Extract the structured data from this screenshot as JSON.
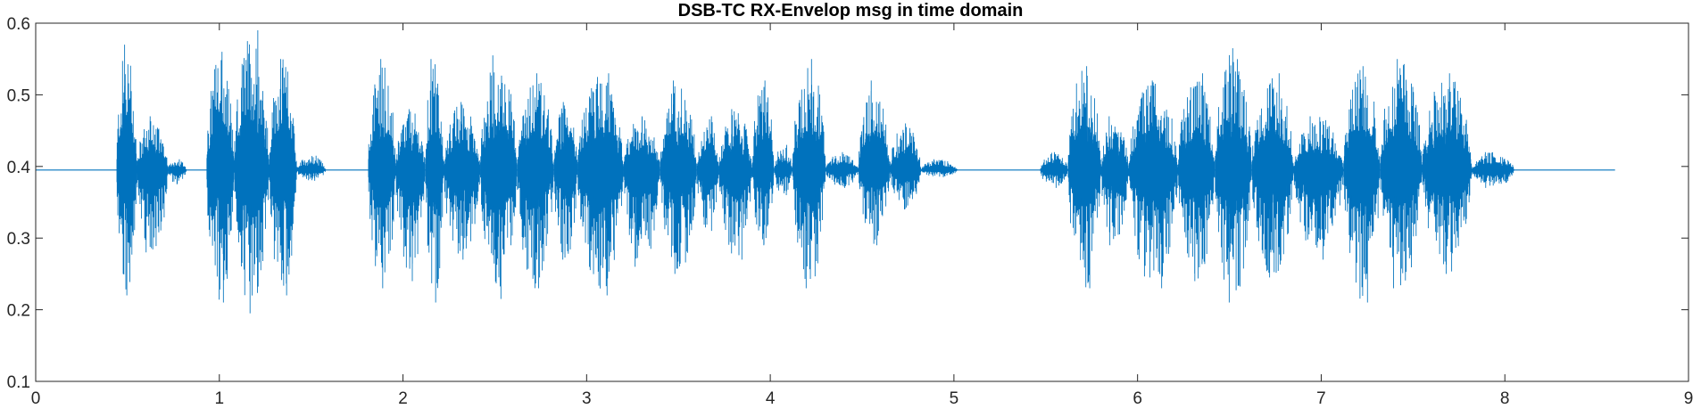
{
  "chart_data": {
    "type": "line",
    "title": "DSB-TC RX-Envelop msg in time domain",
    "xlabel": "",
    "ylabel": "",
    "xlim": [
      0,
      9
    ],
    "ylim": [
      0.1,
      0.6
    ],
    "x_ticks": [
      "0",
      "1",
      "2",
      "3",
      "4",
      "5",
      "6",
      "7",
      "8",
      "9"
    ],
    "y_ticks": [
      "0.1",
      "0.2",
      "0.3",
      "0.4",
      "0.5",
      "0.6"
    ],
    "grid": false,
    "legend": "none",
    "series_color": "#0072BD",
    "baseline": 0.395,
    "signal_end": 8.6,
    "bursts": [
      {
        "start": 0.44,
        "end": 0.55,
        "max": 0.57,
        "min": 0.22
      },
      {
        "start": 0.55,
        "end": 0.72,
        "max": 0.47,
        "min": 0.28
      },
      {
        "start": 0.72,
        "end": 0.82,
        "max": 0.41,
        "min": 0.375
      },
      {
        "start": 0.93,
        "end": 1.08,
        "max": 0.56,
        "min": 0.21
      },
      {
        "start": 1.08,
        "end": 1.27,
        "max": 0.59,
        "min": 0.195
      },
      {
        "start": 1.27,
        "end": 1.42,
        "max": 0.55,
        "min": 0.22
      },
      {
        "start": 1.42,
        "end": 1.58,
        "max": 0.415,
        "min": 0.38
      },
      {
        "start": 1.81,
        "end": 1.96,
        "max": 0.55,
        "min": 0.23
      },
      {
        "start": 1.96,
        "end": 2.12,
        "max": 0.48,
        "min": 0.24
      },
      {
        "start": 2.12,
        "end": 2.22,
        "max": 0.55,
        "min": 0.21
      },
      {
        "start": 2.22,
        "end": 2.42,
        "max": 0.49,
        "min": 0.27
      },
      {
        "start": 2.42,
        "end": 2.62,
        "max": 0.555,
        "min": 0.215
      },
      {
        "start": 2.62,
        "end": 2.82,
        "max": 0.53,
        "min": 0.23
      },
      {
        "start": 2.82,
        "end": 2.95,
        "max": 0.49,
        "min": 0.27
      },
      {
        "start": 2.95,
        "end": 3.2,
        "max": 0.53,
        "min": 0.22
      },
      {
        "start": 3.2,
        "end": 3.4,
        "max": 0.47,
        "min": 0.26
      },
      {
        "start": 3.4,
        "end": 3.6,
        "max": 0.52,
        "min": 0.25
      },
      {
        "start": 3.6,
        "end": 3.72,
        "max": 0.47,
        "min": 0.31
      },
      {
        "start": 3.72,
        "end": 3.9,
        "max": 0.48,
        "min": 0.27
      },
      {
        "start": 3.9,
        "end": 4.02,
        "max": 0.52,
        "min": 0.29
      },
      {
        "start": 4.02,
        "end": 4.12,
        "max": 0.43,
        "min": 0.36
      },
      {
        "start": 4.12,
        "end": 4.3,
        "max": 0.55,
        "min": 0.23
      },
      {
        "start": 4.3,
        "end": 4.48,
        "max": 0.42,
        "min": 0.37
      },
      {
        "start": 4.48,
        "end": 4.65,
        "max": 0.52,
        "min": 0.29
      },
      {
        "start": 4.65,
        "end": 4.82,
        "max": 0.46,
        "min": 0.34
      },
      {
        "start": 4.82,
        "end": 5.02,
        "max": 0.41,
        "min": 0.385
      },
      {
        "start": 5.47,
        "end": 5.62,
        "max": 0.42,
        "min": 0.37
      },
      {
        "start": 5.62,
        "end": 5.8,
        "max": 0.54,
        "min": 0.23
      },
      {
        "start": 5.8,
        "end": 5.95,
        "max": 0.47,
        "min": 0.29
      },
      {
        "start": 5.95,
        "end": 6.22,
        "max": 0.52,
        "min": 0.23
      },
      {
        "start": 6.22,
        "end": 6.42,
        "max": 0.53,
        "min": 0.24
      },
      {
        "start": 6.42,
        "end": 6.62,
        "max": 0.565,
        "min": 0.21
      },
      {
        "start": 6.62,
        "end": 6.85,
        "max": 0.53,
        "min": 0.245
      },
      {
        "start": 6.85,
        "end": 7.12,
        "max": 0.47,
        "min": 0.27
      },
      {
        "start": 7.12,
        "end": 7.32,
        "max": 0.54,
        "min": 0.21
      },
      {
        "start": 7.32,
        "end": 7.55,
        "max": 0.55,
        "min": 0.23
      },
      {
        "start": 7.55,
        "end": 7.82,
        "max": 0.53,
        "min": 0.25
      },
      {
        "start": 7.82,
        "end": 8.05,
        "max": 0.42,
        "min": 0.37
      }
    ]
  }
}
